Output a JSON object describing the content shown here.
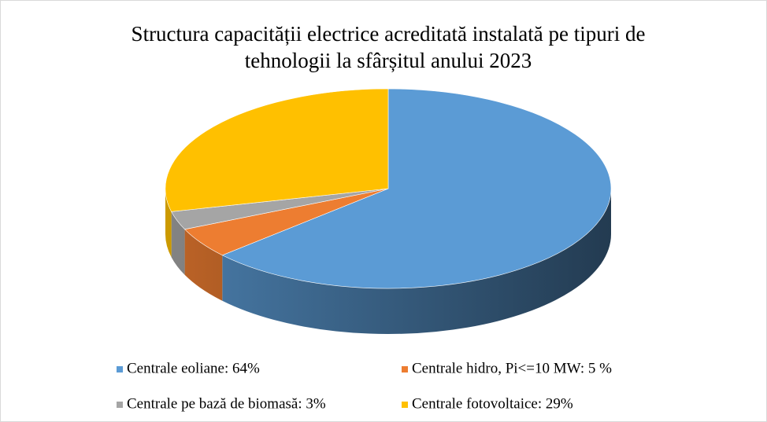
{
  "chart_data": {
    "type": "pie3d",
    "title": [
      "Structura capacității electrice acreditată instalată pe tipuri de",
      "tehnologii la sfârșitul anului 2023"
    ],
    "categories": [
      "Centrale eoliane: 64%",
      "Centrale hidro, Pi<=10 MW: 5 %",
      "Centrale pe bază de biomasă: 3%",
      "Centrale fotovoltaice: 29%"
    ],
    "values": [
      64,
      5,
      3,
      29
    ],
    "colors": [
      "#5b9bd5",
      "#ed7d31",
      "#a5a5a5",
      "#ffc000"
    ],
    "legend": "bottom"
  }
}
